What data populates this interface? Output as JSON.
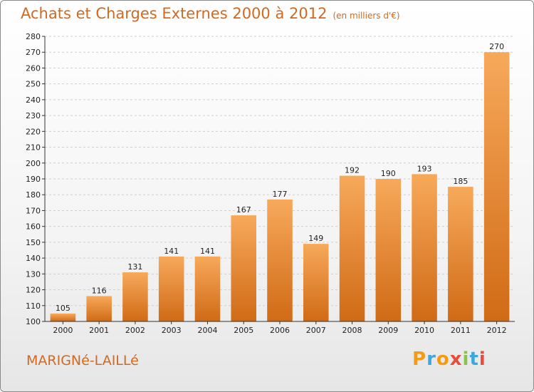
{
  "header": {
    "title": "Achats et Charges Externes 2000 à 2012",
    "unit": "(en milliers d'€)"
  },
  "footer": {
    "commune": "MARIGNé-LAILLé",
    "logo_letters": [
      "P",
      "r",
      "o",
      "x",
      "i",
      "t",
      "i"
    ],
    "logo_colors": [
      "#f39c12",
      "#3ea8dc",
      "#f39c12",
      "#e74c3c",
      "#8bc34a",
      "#3ea8dc",
      "#e74c3c"
    ]
  },
  "chart_data": {
    "type": "bar",
    "title": "Achats et Charges Externes 2000 à 2012",
    "subtitle": "(en milliers d'€)",
    "categories": [
      "2000",
      "2001",
      "2002",
      "2003",
      "2004",
      "2005",
      "2006",
      "2007",
      "2008",
      "2009",
      "2010",
      "2011",
      "2012"
    ],
    "values": [
      105,
      116,
      131,
      141,
      141,
      167,
      177,
      149,
      192,
      190,
      193,
      185,
      270
    ],
    "ylim": [
      100,
      280
    ],
    "yticks": [
      100,
      110,
      120,
      130,
      140,
      150,
      160,
      170,
      180,
      190,
      200,
      210,
      220,
      230,
      240,
      250,
      260,
      270,
      280
    ],
    "grid": true,
    "bar_color_top": "#f7a95a",
    "bar_color_bottom": "#d06a16"
  }
}
